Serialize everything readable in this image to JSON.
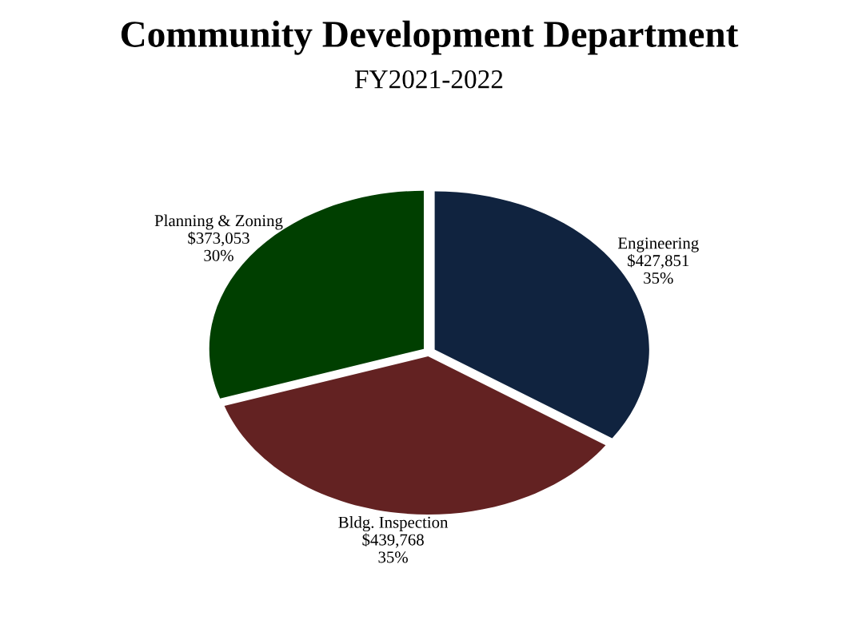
{
  "chart_data": {
    "type": "pie",
    "title": "Community Development Department",
    "subtitle": "FY2021-2022",
    "categories": [
      "Engineering",
      "Bldg. Inspection",
      "Planning & Zoning"
    ],
    "values": [
      427851,
      439768,
      373053
    ],
    "value_labels": [
      "$427,851\n35%",
      "$439,768\n35%",
      "$373,053\n30%"
    ],
    "colors": [
      "#10233f",
      "#632222",
      "#003f00"
    ]
  }
}
